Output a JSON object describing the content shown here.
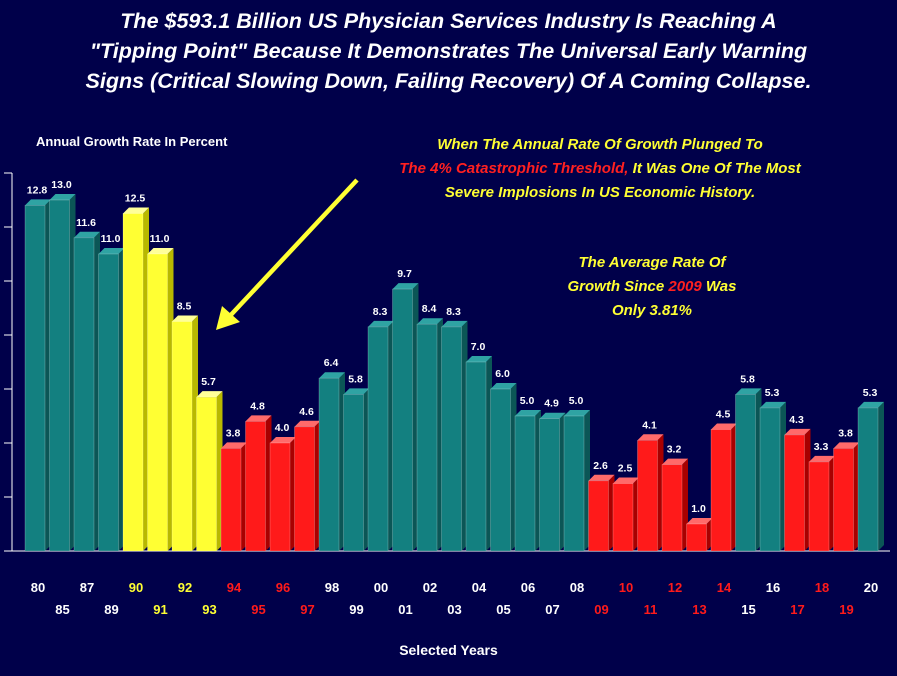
{
  "title_lines": [
    "The $593.1 Billion US Physician Services Industry Is Reaching A",
    "\"Tipping Point\"  Because It Demonstrates The Universal Early Warning",
    "Signs (Critical Slowing Down, Failing Recovery) Of A Coming Collapse."
  ],
  "annotation1": {
    "line1": "When The Annual Rate Of Growth Plunged To",
    "line2_red": "The 4% Catastrophic Threshold,",
    "line2_rest": " It Was One Of The Most",
    "line3": "Severe Implosions In US Economic History."
  },
  "annotation2": {
    "line1": "The Average Rate Of",
    "line2_pre": "Growth Since ",
    "line2_red": "2009",
    "line2_post": " Was",
    "line3": "Only 3.81%"
  },
  "colors": {
    "background": "#00004a",
    "teal": "#138080",
    "yellow": "#ffff33",
    "red": "#ff1a1a",
    "arrow": "#ffff33"
  },
  "chart_data": {
    "type": "bar",
    "ylabel": "Annual Growth Rate In Percent",
    "xlabel": "Selected Years",
    "ylim": [
      0,
      14
    ],
    "categories": [
      "80",
      "85",
      "87",
      "89",
      "90",
      "91",
      "92",
      "93",
      "94",
      "95",
      "96",
      "97",
      "98",
      "99",
      "00",
      "01",
      "02",
      "03",
      "04",
      "05",
      "06",
      "07",
      "08",
      "09",
      "10",
      "11",
      "12",
      "13",
      "14",
      "15",
      "16",
      "17",
      "18",
      "19",
      "20"
    ],
    "values": [
      12.8,
      13.0,
      11.6,
      11.0,
      12.5,
      11.0,
      8.5,
      5.7,
      3.8,
      4.8,
      4.0,
      4.6,
      6.4,
      5.8,
      8.3,
      9.7,
      8.4,
      8.3,
      7.0,
      6.0,
      5.0,
      4.9,
      5.0,
      2.6,
      2.5,
      4.1,
      3.2,
      1.0,
      4.5,
      5.8,
      5.3,
      4.3,
      3.3,
      3.8,
      5.3
    ],
    "value_labels": [
      "12.8",
      "13.0",
      "11.6",
      "11.0",
      "12.5",
      "11.0",
      "8.5",
      "5.7",
      "3.8",
      "4.8",
      "4.0",
      "4.6",
      "6.4",
      "5.8",
      "8.3",
      "9.7",
      "8.4",
      "8.3",
      "7.0",
      "6.0",
      "5.0",
      "4.9",
      "5.0",
      "2.6",
      "2.5",
      "4.1",
      "3.2",
      "1.0",
      "4.5",
      "5.8",
      "5.3",
      "4.3",
      "3.3",
      "3.8",
      "5.3"
    ],
    "bar_colors": [
      "teal",
      "teal",
      "teal",
      "teal",
      "yellow",
      "yellow",
      "yellow",
      "yellow",
      "red",
      "red",
      "red",
      "red",
      "teal",
      "teal",
      "teal",
      "teal",
      "teal",
      "teal",
      "teal",
      "teal",
      "teal",
      "teal",
      "teal",
      "red",
      "red",
      "red",
      "red",
      "red",
      "red",
      "teal",
      "teal",
      "red",
      "red",
      "red",
      "teal"
    ],
    "tick_label_colors": [
      "white",
      "white",
      "white",
      "white",
      "yellow",
      "yellow",
      "yellow",
      "yellow",
      "red",
      "red",
      "red",
      "red",
      "white",
      "white",
      "white",
      "white",
      "white",
      "white",
      "white",
      "white",
      "white",
      "white",
      "white",
      "red",
      "red",
      "red",
      "red",
      "red",
      "red",
      "white",
      "white",
      "red",
      "red",
      "red",
      "white"
    ]
  }
}
